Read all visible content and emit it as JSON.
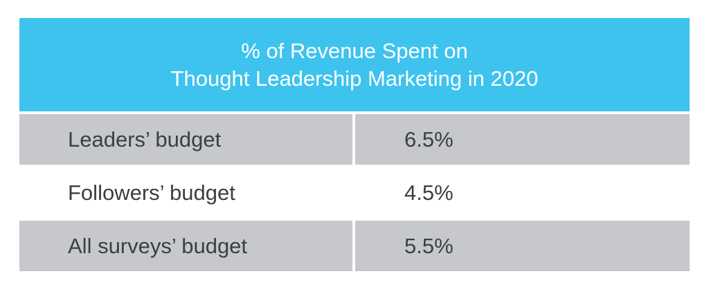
{
  "chart_data": {
    "type": "table",
    "title_line1": "% of Revenue Spent on",
    "title_line2": "Thought Leadership Marketing in 2020",
    "rows": [
      {
        "label": "Leaders’ budget",
        "value": "6.5%"
      },
      {
        "label": "Followers’ budget",
        "value": "4.5%"
      },
      {
        "label": "All surveys’ budget",
        "value": "5.5%"
      }
    ],
    "colors": {
      "header_bg": "#3ec3ef",
      "header_text": "#ffffff",
      "row_shaded": "#c6c8cb",
      "row_plain": "#ffffff",
      "cell_text": "#3b3f45"
    }
  }
}
